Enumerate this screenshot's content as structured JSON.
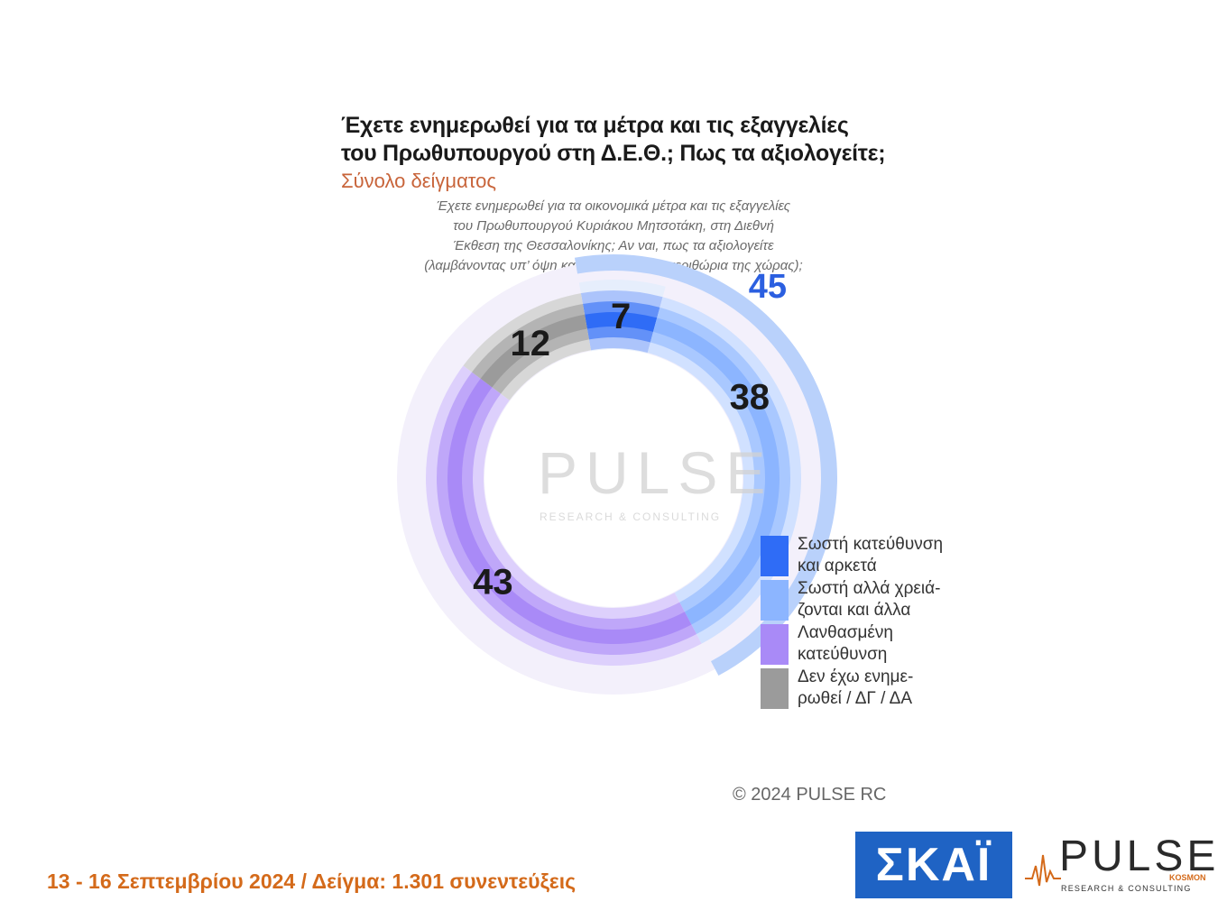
{
  "title": {
    "line1": "Έχετε ενημερωθεί για τα μέτρα και τις εξαγγελίες",
    "line2": "του Πρωθυπουργού στη Δ.Ε.Θ.; Πως τα αξιολογείτε;"
  },
  "subtitle": "Σύνολο δείγματος",
  "question": {
    "line1": "Έχετε ενημερωθεί για τα οικονομικά μέτρα και τις εξαγγελίες",
    "line2": "του Πρωθυπουργού Κυριάκου Μητσοτάκη, στη Διεθνή",
    "line3": "Έκθεση της Θεσσαλονίκης; Αν ναι, πως τα αξιολογείτε",
    "line4": "(λαμβάνοντας υπ’ όψη και τα οικονομικά περιθώρια της χώρας);"
  },
  "chart_data": {
    "type": "pie",
    "variant": "donut",
    "categories": [
      "Σωστή κατεύθυνση και αρκετά",
      "Σωστή αλλά χρειάζονται και άλλα",
      "Λανθασμένη κατεύθυνση",
      "Δεν έχω ενημερωθεί / ΔΓ / ΔΑ"
    ],
    "values": [
      7,
      38,
      43,
      12
    ],
    "colors": [
      "#2f6cf6",
      "#8cb5ff",
      "#a98af7",
      "#9b9b9b"
    ],
    "group_total": {
      "label": "45",
      "value": 45,
      "includes": [
        0,
        1
      ],
      "color": "#2b5fe0"
    },
    "legend_position": "right"
  },
  "legend": [
    {
      "line1": "Σωστή κατεύθυνση",
      "line2": "και αρκετά",
      "color": "#2f6cf6"
    },
    {
      "line1": "Σωστή αλλά χρειά-",
      "line2": "ζονται και άλλα",
      "color": "#8cb5ff"
    },
    {
      "line1": "Λανθασμένη",
      "line2": "κατεύθυνση",
      "color": "#a98af7"
    },
    {
      "line1": "Δεν έχω ενημε-",
      "line2": "ρωθεί / ΔΓ / ΔΑ",
      "color": "#9b9b9b"
    }
  ],
  "watermark": {
    "word": "PULSE",
    "sub": "RESEARCH & CONSULTING"
  },
  "copyright": "© 2024 PULSE RC",
  "footer": "13 - 16 Σεπτεμβρίου 2024  /  Δείγμα:  1.301 συνεντεύξεις",
  "logos": {
    "skai": "ΣΚΑΪ",
    "pulse_word": "PULSE",
    "pulse_kosmon": "KOSMON",
    "pulse_sub": "RESEARCH & CONSULTING",
    "pulse_color": "#d46a1a"
  }
}
